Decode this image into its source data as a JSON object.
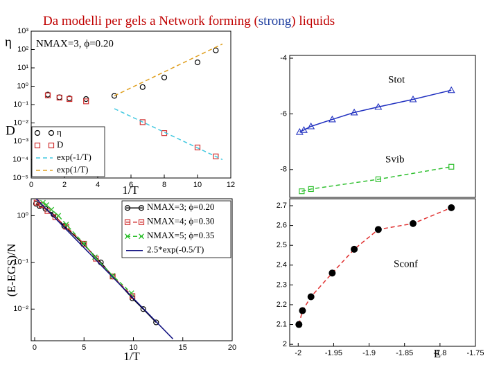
{
  "header": {
    "title": [
      "Da modelli per gels a Network forming (",
      "strong",
      ") liquids"
    ]
  },
  "chart_data": [
    {
      "type": "scatter",
      "ylog": true,
      "y_labels": [
        "η",
        "D"
      ],
      "x_label": "1/T",
      "annotations": [
        "NMAX=3, ϕ=0.20"
      ],
      "xlim": [
        0,
        12
      ],
      "xticks": [
        0,
        2,
        4,
        6,
        8,
        10,
        12
      ],
      "ylim": [
        1e-05,
        1000
      ],
      "yticks": [
        {
          "value": 1e-05,
          "label": "10⁻⁵"
        },
        {
          "value": 0.0001,
          "label": "10⁻⁴"
        },
        {
          "value": 0.001,
          "label": "10⁻³"
        },
        {
          "value": 0.01,
          "label": "10⁻²"
        },
        {
          "value": 0.1,
          "label": "10⁻¹"
        },
        {
          "value": 1,
          "label": "10⁰"
        },
        {
          "value": 10,
          "label": "10¹"
        },
        {
          "value": 100,
          "label": "10²"
        },
        {
          "value": 1000,
          "label": "10³"
        }
      ],
      "legend": "lower left",
      "series": [
        {
          "name": "η",
          "color": "#000000",
          "marker": "circle",
          "line": null,
          "x": [
            1,
            1.7,
            2.3,
            3.3,
            5,
            6.7,
            8,
            10,
            11.1
          ],
          "values": [
            0.35,
            0.25,
            0.22,
            0.2,
            0.3,
            0.9,
            3,
            20,
            90
          ]
        },
        {
          "name": "D",
          "color": "#d03030",
          "marker": "square",
          "line": null,
          "x": [
            1,
            1.7,
            2.3,
            3.3,
            6.7,
            8,
            10,
            11.1
          ],
          "values": [
            0.32,
            0.24,
            0.2,
            0.15,
            0.011,
            0.0028,
            0.00046,
            0.00015
          ]
        },
        {
          "name": "exp(-1/T)",
          "color": "#40c8e0",
          "marker": null,
          "line": "dashed",
          "x": [
            5,
            11.5
          ],
          "values": [
            0.06,
            0.0001
          ]
        },
        {
          "name": "exp(1/T)",
          "color": "#e0a020",
          "marker": null,
          "line": "dashed",
          "x": [
            5,
            11.5
          ],
          "values": [
            0.3,
            200
          ]
        }
      ]
    },
    {
      "type": "scatter",
      "ylog": false,
      "annotations": [
        "Stot",
        "Svib"
      ],
      "xlim": [
        -2.012,
        -1.75
      ],
      "xticks": [],
      "ylim": [
        -9,
        -3.9
      ],
      "yticks": [
        -8,
        -6,
        -4
      ],
      "series": [
        {
          "name": "Stot",
          "color": "#2030c0",
          "marker": "triangle",
          "line": "solid",
          "x": [
            -1.998,
            -1.992,
            -1.982,
            -1.952,
            -1.921,
            -1.887,
            -1.838,
            -1.784
          ],
          "values": [
            -6.65,
            -6.58,
            -6.45,
            -6.2,
            -5.95,
            -5.75,
            -5.48,
            -5.15
          ]
        },
        {
          "name": "Svib",
          "color": "#30c030",
          "marker": "square",
          "line": "dashed",
          "x": [
            -1.995,
            -1.982,
            -1.887,
            -1.784
          ],
          "values": [
            -8.78,
            -8.7,
            -8.35,
            -7.9
          ]
        }
      ]
    },
    {
      "type": "scatter",
      "ylog": true,
      "y_label": "(E-EGS)/N",
      "x_label": "1/T",
      "xlim": [
        -0.35,
        20
      ],
      "xticks": [
        0,
        5,
        10,
        15,
        20
      ],
      "ylim": [
        0.0021,
        2.3
      ],
      "yticks": [
        {
          "value": 0.01,
          "label": "10⁻²"
        },
        {
          "value": 0.1,
          "label": "10⁻¹"
        },
        {
          "value": 1,
          "label": "10⁰"
        }
      ],
      "legend": "upper right",
      "series": [
        {
          "name": "NMAX=3; ϕ=0.20",
          "color": "#000000",
          "marker": "circle",
          "line": "solid",
          "x": [
            0.14,
            0.5,
            1.1,
            1.9,
            3.0,
            4.9,
            6.7,
            7.9,
            9.9,
            11,
            12.3
          ],
          "values": [
            1.8,
            1.6,
            1.4,
            1.07,
            0.6,
            0.25,
            0.1,
            0.05,
            0.017,
            0.01,
            0.0052
          ]
        },
        {
          "name": "NMAX=4; ϕ=0.30",
          "color": "#d03030",
          "marker": "square",
          "line": "dashed",
          "x": [
            0.2,
            0.7,
            1.3,
            2.1,
            3.2,
            5,
            6.2,
            7.9,
            9.9
          ],
          "values": [
            1.9,
            1.7,
            1.26,
            0.93,
            0.58,
            0.25,
            0.12,
            0.05,
            0.019
          ]
        },
        {
          "name": "NMAX=5; ϕ=0.35",
          "color": "#30c030",
          "marker": "cross",
          "line": "dashed",
          "x": [
            0.84,
            1.2,
            1.7,
            2.4,
            3.2,
            5,
            6.1,
            7.9,
            9.8
          ],
          "values": [
            1.9,
            1.7,
            1.35,
            1.0,
            0.65,
            0.25,
            0.13,
            0.052,
            0.022
          ]
        },
        {
          "name": "2.5*exp(-0.5/T)",
          "color": "#101080",
          "marker": null,
          "line": "solid",
          "x": [
            0,
            14
          ],
          "values": [
            2.5,
            0.0023
          ]
        }
      ]
    },
    {
      "type": "scatter",
      "ylog": false,
      "x_label": "E",
      "annotations": [
        "Sconf"
      ],
      "xlim": [
        -2.012,
        -1.75
      ],
      "xticks": [
        -2,
        -1.95,
        -1.9,
        -1.85,
        -1.8,
        -1.75
      ],
      "ylim": [
        1.99,
        2.735
      ],
      "yticks": [
        2,
        2.1,
        2.2,
        2.3,
        2.4,
        2.5,
        2.6,
        2.7
      ],
      "series": [
        {
          "name": "Sconf",
          "color": "#000000",
          "line_color": "#e03030",
          "marker": "dot",
          "line": "dashed",
          "x": [
            -1.999,
            -1.994,
            -1.982,
            -1.952,
            -1.921,
            -1.887,
            -1.838,
            -1.784
          ],
          "values": [
            2.1,
            2.17,
            2.24,
            2.36,
            2.48,
            2.58,
            2.61,
            2.69
          ]
        }
      ]
    }
  ]
}
